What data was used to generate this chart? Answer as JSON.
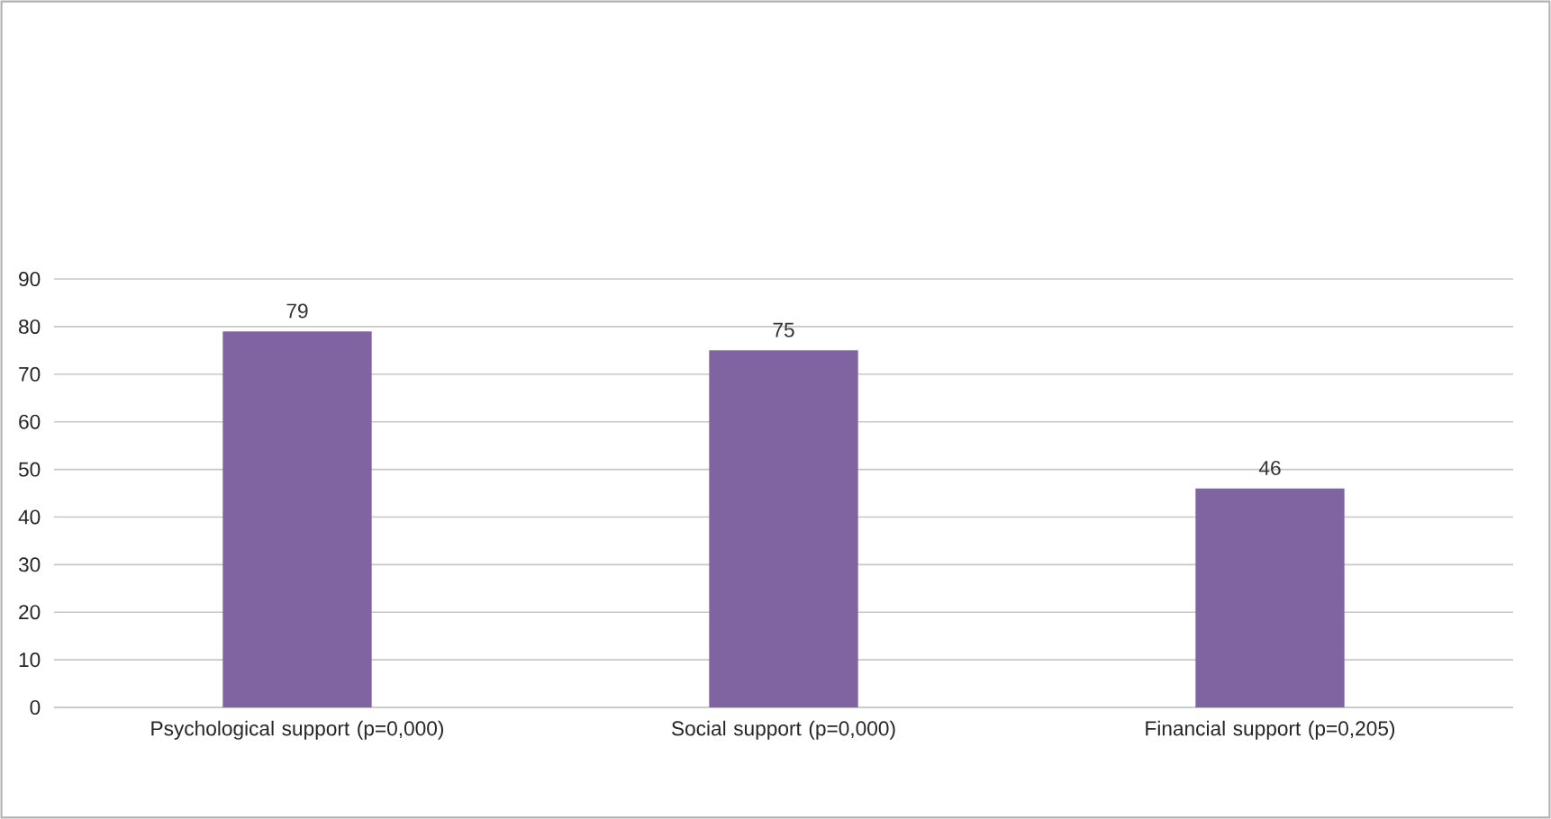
{
  "chart_data": {
    "type": "bar",
    "categories": [
      "Psychological support (p=0,000)",
      "Social support   (p=0,000)",
      "Financial support (p=0,205)"
    ],
    "values": [
      79,
      75,
      46
    ],
    "color": "#8064a2",
    "ylim": [
      0,
      90
    ],
    "yticks": [
      0,
      10,
      20,
      30,
      40,
      50,
      60,
      70,
      80,
      90
    ],
    "grid": "y",
    "data_labels": true
  }
}
